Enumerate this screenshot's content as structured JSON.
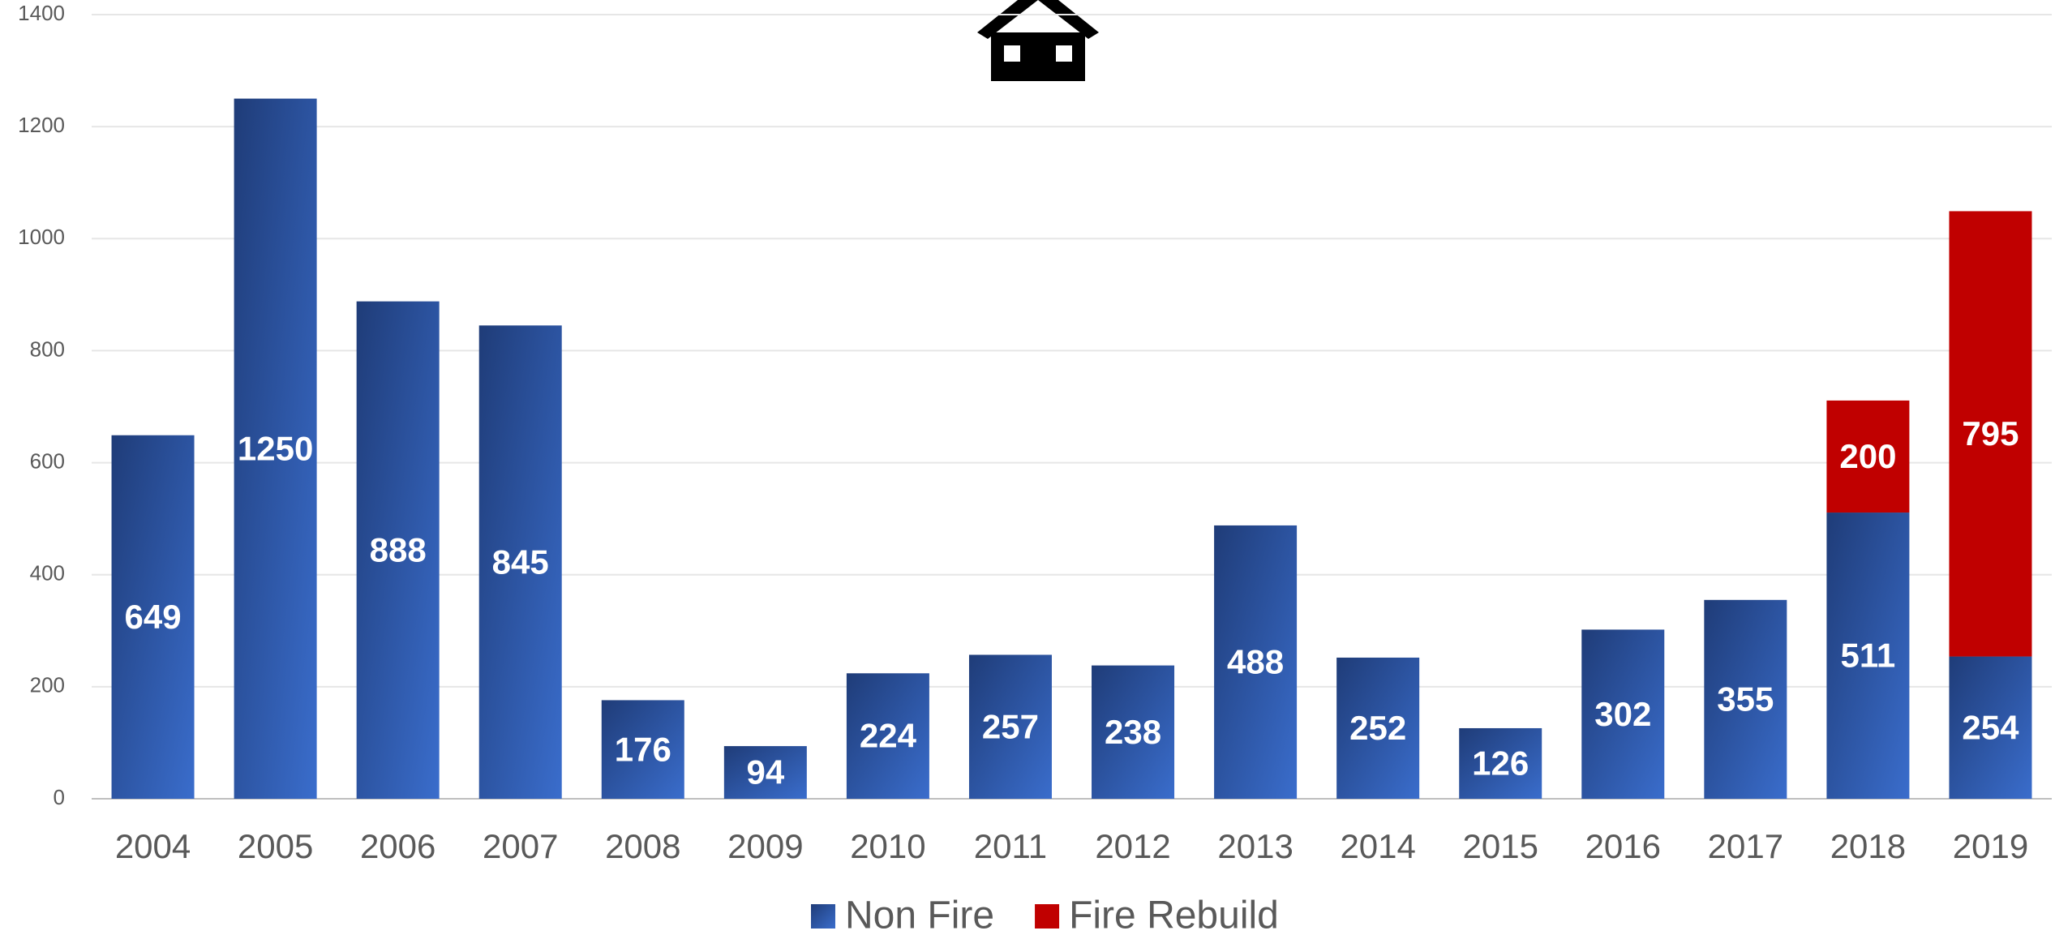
{
  "chart_data": {
    "type": "stacked_bar",
    "categories": [
      "2004",
      "2005",
      "2006",
      "2007",
      "2008",
      "2009",
      "2010",
      "2011",
      "2012",
      "2013",
      "2014",
      "2015",
      "2016",
      "2017",
      "2018",
      "2019"
    ],
    "series": [
      {
        "name": "Non Fire",
        "color": "#2f5bb0",
        "values": [
          649,
          1250,
          888,
          845,
          176,
          94,
          224,
          257,
          238,
          488,
          252,
          126,
          302,
          355,
          511,
          254
        ]
      },
      {
        "name": "Fire Rebuild",
        "color": "#c00000",
        "values": [
          null,
          null,
          null,
          null,
          null,
          null,
          null,
          null,
          null,
          null,
          null,
          null,
          null,
          null,
          200,
          795
        ]
      }
    ],
    "ylim": [
      0,
      1400
    ],
    "yticks": [
      0,
      200,
      400,
      600,
      800,
      1000,
      1200,
      1400
    ],
    "grid": true,
    "legend": "bottom"
  }
}
